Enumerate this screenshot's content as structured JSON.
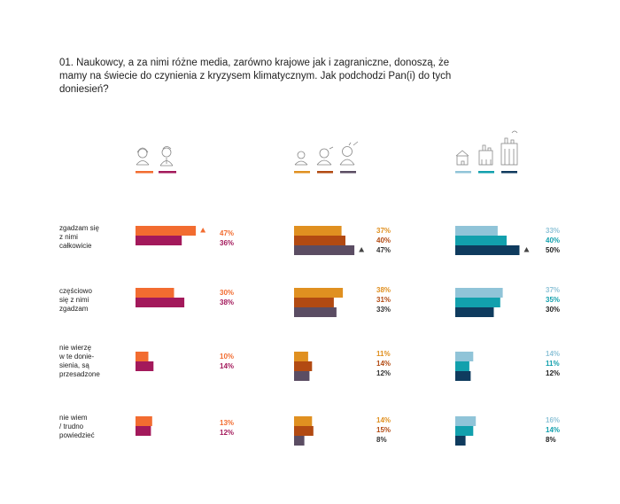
{
  "question": "01. Naukowcy, a za nimi różne media, zarówno krajowe jak i zagraniczne, donoszą, że mamy na świecie do czynienia z kryzysem klimatycznym. Jak podchodzi Pan(i) do tych doniesień?",
  "categories": [
    [
      "zgadzam się",
      "z nimi",
      "całkowicie"
    ],
    [
      "częściowo",
      "się z nimi",
      "zgadzam"
    ],
    [
      "nie wierzę",
      "w te donie-",
      "sienia, są",
      "przesadzone"
    ],
    [
      "nie wiem",
      "/ trudno",
      "powiedzieć"
    ]
  ],
  "chart_data": {
    "type": "bar",
    "orientation": "horizontal",
    "categories": [
      "zgadzam się z nimi całkowicie",
      "częściowo się z nimi zgadzam",
      "nie wierzę w te doniesienia, są przesadzone",
      "nie wiem / trudno powiedzieć"
    ],
    "panels": [
      {
        "group": "gender",
        "icon": "woman-man-icons",
        "series": [
          {
            "color": "#f26c30",
            "values": [
              47,
              30,
              10,
              13
            ]
          },
          {
            "color": "#a3195b",
            "values": [
              36,
              38,
              14,
              12
            ]
          }
        ]
      },
      {
        "group": "age",
        "icon": "age-group-icons",
        "series": [
          {
            "color": "#e09020",
            "values": [
              37,
              38,
              11,
              14
            ]
          },
          {
            "color": "#b24a12",
            "values": [
              40,
              31,
              14,
              15
            ]
          },
          {
            "color": "#5b4d63",
            "values": [
              47,
              33,
              12,
              8
            ]
          }
        ]
      },
      {
        "group": "place_of_residence",
        "icon": "town-size-icons",
        "series": [
          {
            "color": "#90c4d8",
            "values": [
              33,
              37,
              14,
              16
            ]
          },
          {
            "color": "#12a0ad",
            "values": [
              40,
              35,
              11,
              14
            ]
          },
          {
            "color": "#0f3b5e",
            "values": [
              50,
              30,
              12,
              8
            ]
          }
        ]
      }
    ],
    "value_suffix": "%",
    "highlight_markers": [
      {
        "panel": 0,
        "category": 0,
        "series": 0
      },
      {
        "panel": 1,
        "category": 0,
        "series": 2
      },
      {
        "panel": 2,
        "category": 0,
        "series": 2
      }
    ]
  }
}
